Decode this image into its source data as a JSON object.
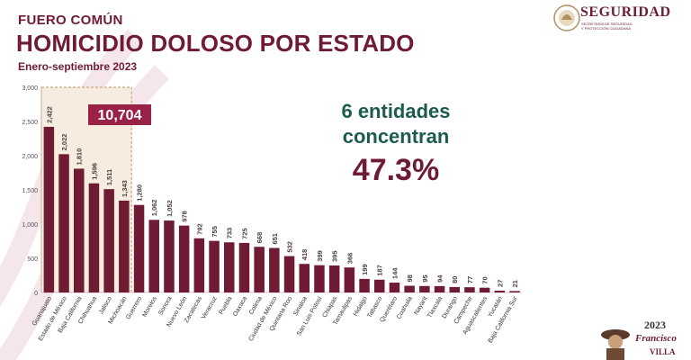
{
  "header": {
    "kicker": "FUERO COMÚN",
    "title": "HOMICIDIO DOLOSO POR ESTADO",
    "subtitle": "Enero-septiembre 2023"
  },
  "logo": {
    "text": "SEGURIDAD",
    "sub1": "SECRETARÍA DE SEGURIDAD",
    "sub2": "Y PROTECCIÓN CIUDADANA"
  },
  "headline": {
    "line1": "6 entidades",
    "line2": "concentran",
    "percent": "47.3%"
  },
  "badge": {
    "year": "2023",
    "name": "Francisco",
    "surname": "VILLA"
  },
  "colors": {
    "bar": "#6f1b34",
    "highlight_box": "#c9a77a",
    "total_badge": "#9b2247",
    "headline": "#1e5b4f"
  },
  "chart_data": {
    "type": "bar",
    "ylim": [
      0,
      3000
    ],
    "yticks": [
      "0",
      "500",
      "1,000",
      "1,500",
      "2,000",
      "2,500",
      "3,000"
    ],
    "grid": false,
    "highlight_count": 6,
    "highlight_total": "10,704",
    "categories": [
      "Guanajuato",
      "Estado de México",
      "Baja California",
      "Chihuahua",
      "Jalisco",
      "Michoacán",
      "Guerrero",
      "Morelos",
      "Sonora",
      "Nuevo León",
      "Zacatecas",
      "Veracruz",
      "Puebla",
      "Oaxaca",
      "Colima",
      "Ciudad de México",
      "Quintana Roo",
      "Sinaloa",
      "San Luis Potosí",
      "Chiapas",
      "Tamaulipas",
      "Hidalgo",
      "Tabasco",
      "Querétaro",
      "Coahuila",
      "Nayarit",
      "Tlaxcala",
      "Durango",
      "Campeche",
      "Aguascalientes",
      "Yucatán",
      "Baja California Sur"
    ],
    "values": [
      2422,
      2022,
      1810,
      1596,
      1511,
      1343,
      1280,
      1062,
      1052,
      978,
      792,
      755,
      733,
      725,
      668,
      651,
      532,
      418,
      399,
      395,
      366,
      199,
      187,
      144,
      98,
      95,
      94,
      80,
      77,
      70,
      27,
      21
    ],
    "value_labels": [
      "2,422",
      "2,022",
      "1,810",
      "1,596",
      "1,511",
      "1,343",
      "1,280",
      "1,062",
      "1,052",
      "978",
      "792",
      "755",
      "733",
      "725",
      "668",
      "651",
      "532",
      "418",
      "399",
      "395",
      "366",
      "199",
      "187",
      "144",
      "98",
      "95",
      "94",
      "80",
      "77",
      "70",
      "27",
      "21"
    ]
  }
}
